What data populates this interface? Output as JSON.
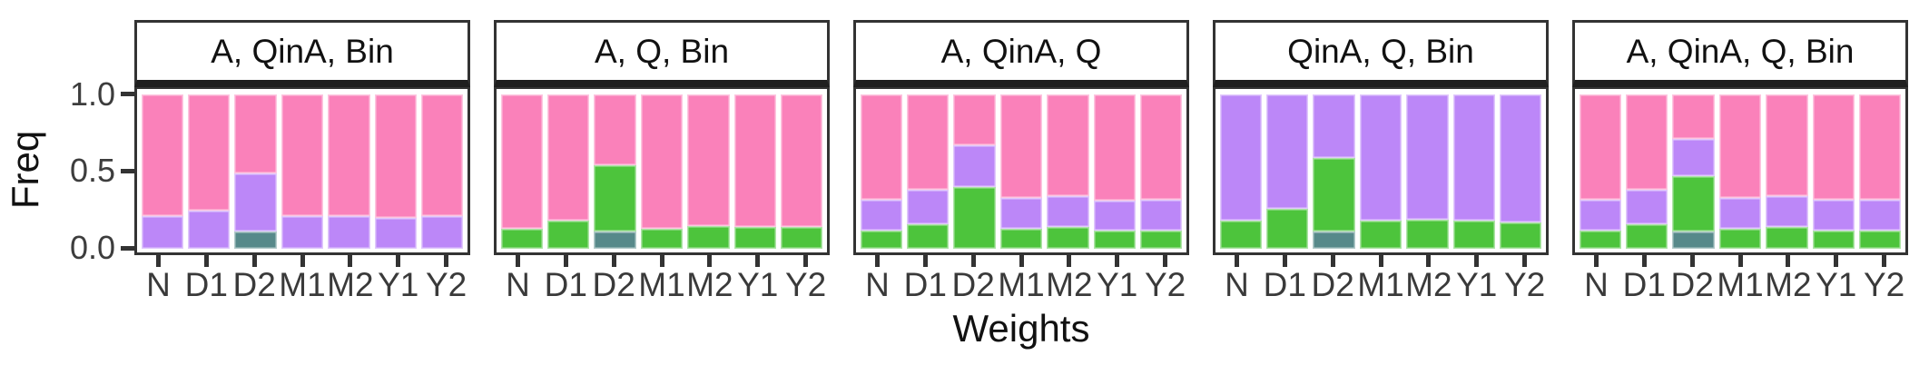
{
  "chart_data": {
    "type": "bar",
    "stacked": true,
    "faceted": true,
    "title": "",
    "xlabel": "Weights",
    "ylabel": "Freq",
    "ylim": [
      0,
      1
    ],
    "yticks": [
      1.0,
      0.5,
      0.0
    ],
    "ytick_labels": [
      "1.0",
      "0.5",
      "0.0"
    ],
    "categories": [
      "N",
      "D1",
      "D2",
      "M1",
      "M2",
      "Y1",
      "Y2"
    ],
    "legend_position": "none",
    "grid": false,
    "colors": {
      "pink": "#FA81BA",
      "purple": "#BC87F8",
      "green": "#4DC43C",
      "teal": "#57898A"
    },
    "segment_order_bottom_to_top": [
      "teal",
      "green",
      "purple",
      "pink"
    ],
    "panels": [
      {
        "title": "A, QinA, Bin",
        "bars": [
          {
            "category": "N",
            "segments": [
              {
                "color": "purple",
                "value": 0.21
              },
              {
                "color": "pink",
                "value": 0.79
              }
            ]
          },
          {
            "category": "D1",
            "segments": [
              {
                "color": "purple",
                "value": 0.25
              },
              {
                "color": "pink",
                "value": 0.75
              }
            ]
          },
          {
            "category": "D2",
            "segments": [
              {
                "color": "teal",
                "value": 0.11
              },
              {
                "color": "purple",
                "value": 0.38
              },
              {
                "color": "pink",
                "value": 0.51
              }
            ]
          },
          {
            "category": "M1",
            "segments": [
              {
                "color": "purple",
                "value": 0.21
              },
              {
                "color": "pink",
                "value": 0.79
              }
            ]
          },
          {
            "category": "M2",
            "segments": [
              {
                "color": "purple",
                "value": 0.21
              },
              {
                "color": "pink",
                "value": 0.79
              }
            ]
          },
          {
            "category": "Y1",
            "segments": [
              {
                "color": "purple",
                "value": 0.2
              },
              {
                "color": "pink",
                "value": 0.8
              }
            ]
          },
          {
            "category": "Y2",
            "segments": [
              {
                "color": "purple",
                "value": 0.21
              },
              {
                "color": "pink",
                "value": 0.79
              }
            ]
          }
        ]
      },
      {
        "title": "A, Q, Bin",
        "bars": [
          {
            "category": "N",
            "segments": [
              {
                "color": "green",
                "value": 0.13
              },
              {
                "color": "pink",
                "value": 0.87
              }
            ]
          },
          {
            "category": "D1",
            "segments": [
              {
                "color": "green",
                "value": 0.18
              },
              {
                "color": "pink",
                "value": 0.82
              }
            ]
          },
          {
            "category": "D2",
            "segments": [
              {
                "color": "teal",
                "value": 0.11
              },
              {
                "color": "green",
                "value": 0.43
              },
              {
                "color": "pink",
                "value": 0.46
              }
            ]
          },
          {
            "category": "M1",
            "segments": [
              {
                "color": "green",
                "value": 0.13
              },
              {
                "color": "pink",
                "value": 0.87
              }
            ]
          },
          {
            "category": "M2",
            "segments": [
              {
                "color": "green",
                "value": 0.15
              },
              {
                "color": "pink",
                "value": 0.85
              }
            ]
          },
          {
            "category": "Y1",
            "segments": [
              {
                "color": "green",
                "value": 0.14
              },
              {
                "color": "pink",
                "value": 0.86
              }
            ]
          },
          {
            "category": "Y2",
            "segments": [
              {
                "color": "green",
                "value": 0.14
              },
              {
                "color": "pink",
                "value": 0.86
              }
            ]
          }
        ]
      },
      {
        "title": "A, QinA, Q",
        "bars": [
          {
            "category": "N",
            "segments": [
              {
                "color": "green",
                "value": 0.12
              },
              {
                "color": "purple",
                "value": 0.2
              },
              {
                "color": "pink",
                "value": 0.68
              }
            ]
          },
          {
            "category": "D1",
            "segments": [
              {
                "color": "green",
                "value": 0.16
              },
              {
                "color": "purple",
                "value": 0.22
              },
              {
                "color": "pink",
                "value": 0.62
              }
            ]
          },
          {
            "category": "D2",
            "segments": [
              {
                "color": "green",
                "value": 0.4
              },
              {
                "color": "purple",
                "value": 0.27
              },
              {
                "color": "pink",
                "value": 0.33
              }
            ]
          },
          {
            "category": "M1",
            "segments": [
              {
                "color": "green",
                "value": 0.13
              },
              {
                "color": "purple",
                "value": 0.2
              },
              {
                "color": "pink",
                "value": 0.67
              }
            ]
          },
          {
            "category": "M2",
            "segments": [
              {
                "color": "green",
                "value": 0.14
              },
              {
                "color": "purple",
                "value": 0.2
              },
              {
                "color": "pink",
                "value": 0.66
              }
            ]
          },
          {
            "category": "Y1",
            "segments": [
              {
                "color": "green",
                "value": 0.12
              },
              {
                "color": "purple",
                "value": 0.19
              },
              {
                "color": "pink",
                "value": 0.69
              }
            ]
          },
          {
            "category": "Y2",
            "segments": [
              {
                "color": "green",
                "value": 0.12
              },
              {
                "color": "purple",
                "value": 0.2
              },
              {
                "color": "pink",
                "value": 0.68
              }
            ]
          }
        ]
      },
      {
        "title": "QinA, Q, Bin",
        "bars": [
          {
            "category": "N",
            "segments": [
              {
                "color": "green",
                "value": 0.18
              },
              {
                "color": "purple",
                "value": 0.82
              }
            ]
          },
          {
            "category": "D1",
            "segments": [
              {
                "color": "green",
                "value": 0.26
              },
              {
                "color": "purple",
                "value": 0.74
              }
            ]
          },
          {
            "category": "D2",
            "segments": [
              {
                "color": "teal",
                "value": 0.11
              },
              {
                "color": "green",
                "value": 0.48
              },
              {
                "color": "purple",
                "value": 0.41
              }
            ]
          },
          {
            "category": "M1",
            "segments": [
              {
                "color": "green",
                "value": 0.18
              },
              {
                "color": "purple",
                "value": 0.82
              }
            ]
          },
          {
            "category": "M2",
            "segments": [
              {
                "color": "green",
                "value": 0.19
              },
              {
                "color": "purple",
                "value": 0.81
              }
            ]
          },
          {
            "category": "Y1",
            "segments": [
              {
                "color": "green",
                "value": 0.18
              },
              {
                "color": "purple",
                "value": 0.82
              }
            ]
          },
          {
            "category": "Y2",
            "segments": [
              {
                "color": "green",
                "value": 0.17
              },
              {
                "color": "purple",
                "value": 0.83
              }
            ]
          }
        ]
      },
      {
        "title": "A, QinA, Q, Bin",
        "bars": [
          {
            "category": "N",
            "segments": [
              {
                "color": "green",
                "value": 0.12
              },
              {
                "color": "purple",
                "value": 0.2
              },
              {
                "color": "pink",
                "value": 0.68
              }
            ]
          },
          {
            "category": "D1",
            "segments": [
              {
                "color": "green",
                "value": 0.16
              },
              {
                "color": "purple",
                "value": 0.22
              },
              {
                "color": "pink",
                "value": 0.62
              }
            ]
          },
          {
            "category": "D2",
            "segments": [
              {
                "color": "teal",
                "value": 0.11
              },
              {
                "color": "green",
                "value": 0.36
              },
              {
                "color": "purple",
                "value": 0.24
              },
              {
                "color": "pink",
                "value": 0.29
              }
            ]
          },
          {
            "category": "M1",
            "segments": [
              {
                "color": "green",
                "value": 0.13
              },
              {
                "color": "purple",
                "value": 0.2
              },
              {
                "color": "pink",
                "value": 0.67
              }
            ]
          },
          {
            "category": "M2",
            "segments": [
              {
                "color": "green",
                "value": 0.14
              },
              {
                "color": "purple",
                "value": 0.2
              },
              {
                "color": "pink",
                "value": 0.66
              }
            ]
          },
          {
            "category": "Y1",
            "segments": [
              {
                "color": "green",
                "value": 0.12
              },
              {
                "color": "purple",
                "value": 0.2
              },
              {
                "color": "pink",
                "value": 0.68
              }
            ]
          },
          {
            "category": "Y2",
            "segments": [
              {
                "color": "green",
                "value": 0.12
              },
              {
                "color": "purple",
                "value": 0.2
              },
              {
                "color": "pink",
                "value": 0.68
              }
            ]
          }
        ]
      }
    ]
  }
}
